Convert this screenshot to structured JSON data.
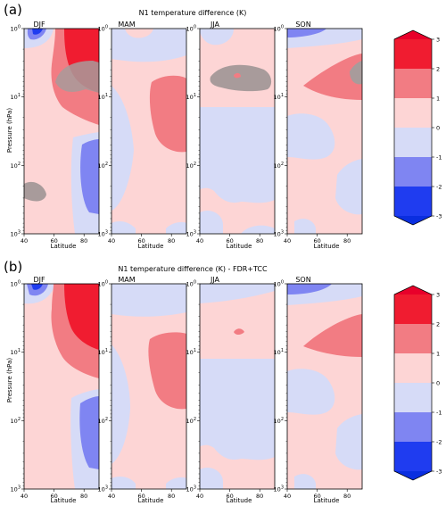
{
  "figure": {
    "panel_a_label": "(a)",
    "panel_b_label": "(b)",
    "panel_a_title": "N1 temperature difference (K)",
    "panel_b_title": "N1 temperature difference (K) - FDR+TCC",
    "season_titles": [
      "DJF",
      "MAM",
      "JJA",
      "SON"
    ],
    "ylabel": "Pressure (hPa)",
    "xlabel": "Latitude"
  },
  "colors": {
    "lev_m3": "#1f3cf0",
    "lev_m2": "#7f85f2",
    "lev_m1": "#d6dbf7",
    "lev_p1": "#fdd5d5",
    "lev_p2": "#f27c83",
    "lev_p3": "#f01c30",
    "hatch_gray": "#a89b9b"
  },
  "chart_data": [
    {
      "type": "heatmap",
      "title": "N1 temperature difference (K)",
      "panels": [
        "DJF",
        "MAM",
        "JJA",
        "SON"
      ],
      "xlabel": "Latitude",
      "ylabel": "Pressure (hPa)",
      "x_ticks": [
        40,
        60,
        80
      ],
      "xlim": [
        40,
        90
      ],
      "y_ticks": [
        "10^0",
        "10^1",
        "10^2",
        "10^3"
      ],
      "ylim_hPa": [
        1000,
        1
      ],
      "y_scale": "log",
      "colorbar_ticks": [
        3,
        2,
        1,
        0,
        -1,
        -2,
        -3
      ],
      "colorbar_range": [
        -3,
        3
      ]
    },
    {
      "type": "heatmap",
      "title": "N1 temperature difference (K) - FDR+TCC",
      "panels": [
        "DJF",
        "MAM",
        "JJA",
        "SON"
      ],
      "xlabel": "Latitude",
      "ylabel": "Pressure (hPa)",
      "x_ticks": [
        40,
        60,
        80
      ],
      "xlim": [
        40,
        90
      ],
      "y_ticks": [
        "10^0",
        "10^1",
        "10^2",
        "10^3"
      ],
      "ylim_hPa": [
        1000,
        1
      ],
      "y_scale": "log",
      "colorbar_ticks": [
        3,
        2,
        1,
        0,
        -1,
        -2,
        -3
      ],
      "colorbar_range": [
        -3,
        3
      ]
    }
  ]
}
